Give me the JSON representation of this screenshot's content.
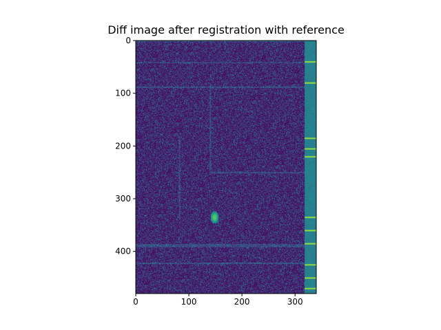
{
  "chart_data": {
    "type": "heatmap",
    "title": "Diff image after registration with reference",
    "xlabel": "",
    "ylabel": "",
    "image_shape": {
      "rows": 480,
      "cols": 340
    },
    "xlim": [
      0,
      340
    ],
    "ylim": [
      480,
      0
    ],
    "y_inverted": true,
    "x_ticks": [
      0,
      100,
      200,
      300
    ],
    "y_ticks": [
      0,
      100,
      200,
      300,
      400
    ],
    "x_tick_labels": [
      "0",
      "100",
      "200",
      "300"
    ],
    "y_tick_labels": [
      "0",
      "100",
      "200",
      "300",
      "400"
    ],
    "colormap": "viridis",
    "colors": {
      "background": "#440154",
      "noise_base": "#46297a",
      "stripe": "#26828e",
      "stripe_bright": "#b5de2b",
      "highlight": "#6ece58"
    },
    "bright_spot": {
      "x": 148,
      "y": 335
    },
    "right_stripe_x": [
      318,
      340
    ],
    "stripe_bands_y": [
      40,
      80,
      185,
      205,
      220,
      335,
      360,
      385,
      425,
      450,
      470
    ]
  }
}
